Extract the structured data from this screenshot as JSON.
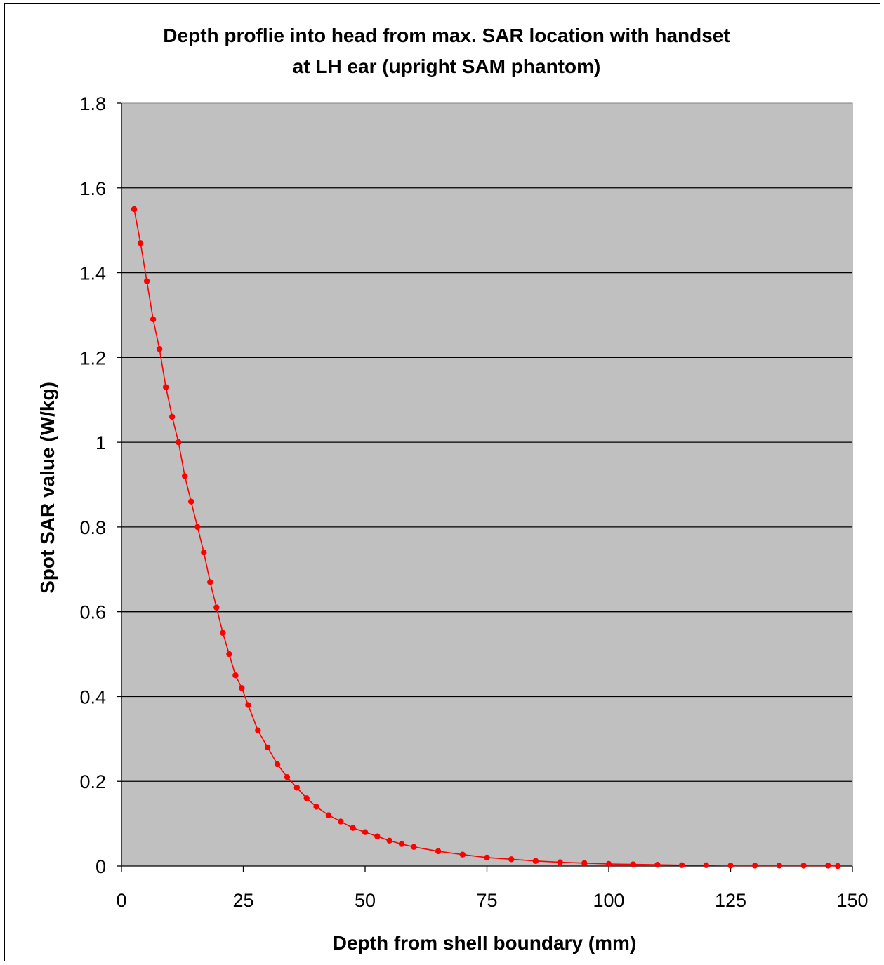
{
  "chart_data": {
    "type": "line",
    "title_line1": "Depth proflie into head from max. SAR location with handset",
    "title_line2": "at LH ear (upright SAM phantom)",
    "xlabel": "Depth from shell boundary (mm)",
    "ylabel": "Spot SAR value (W/kg)",
    "xlim": [
      0,
      150
    ],
    "ylim": [
      0,
      1.8
    ],
    "x_ticks": [
      "0",
      "25",
      "50",
      "75",
      "100",
      "125",
      "150"
    ],
    "y_ticks": [
      "0",
      "0.2",
      "0.4",
      "0.6",
      "0.8",
      "1",
      "1.2",
      "1.4",
      "1.6",
      "1.8"
    ],
    "grid": "horizontal",
    "legend": "none",
    "series": [
      {
        "color": "#ff0000",
        "marker": "circle",
        "x": [
          2.6,
          3.9,
          5.2,
          6.5,
          7.8,
          9.1,
          10.4,
          11.7,
          13.0,
          14.3,
          15.6,
          16.9,
          18.2,
          19.5,
          20.8,
          22.1,
          23.4,
          24.7,
          26.0,
          28.0,
          30.0,
          32.0,
          34.0,
          36.0,
          38.0,
          40.0,
          42.5,
          45.0,
          47.5,
          50.0,
          52.5,
          55.0,
          57.5,
          60.0,
          65.0,
          70.0,
          75.0,
          80.0,
          85.0,
          90.0,
          95.0,
          100.0,
          105.0,
          110.0,
          115.0,
          120.0,
          125.0,
          130.0,
          135.0,
          140.0,
          145.0,
          147.0
        ],
        "y": [
          1.55,
          1.47,
          1.38,
          1.29,
          1.22,
          1.13,
          1.06,
          1.0,
          0.92,
          0.86,
          0.8,
          0.74,
          0.67,
          0.61,
          0.55,
          0.5,
          0.45,
          0.42,
          0.38,
          0.32,
          0.28,
          0.24,
          0.21,
          0.185,
          0.16,
          0.14,
          0.12,
          0.105,
          0.09,
          0.08,
          0.07,
          0.06,
          0.052,
          0.045,
          0.035,
          0.027,
          0.02,
          0.016,
          0.012,
          0.009,
          0.007,
          0.005,
          0.004,
          0.003,
          0.002,
          0.002,
          0.001,
          0.001,
          0.001,
          0.001,
          0.001,
          0.0
        ]
      }
    ]
  }
}
